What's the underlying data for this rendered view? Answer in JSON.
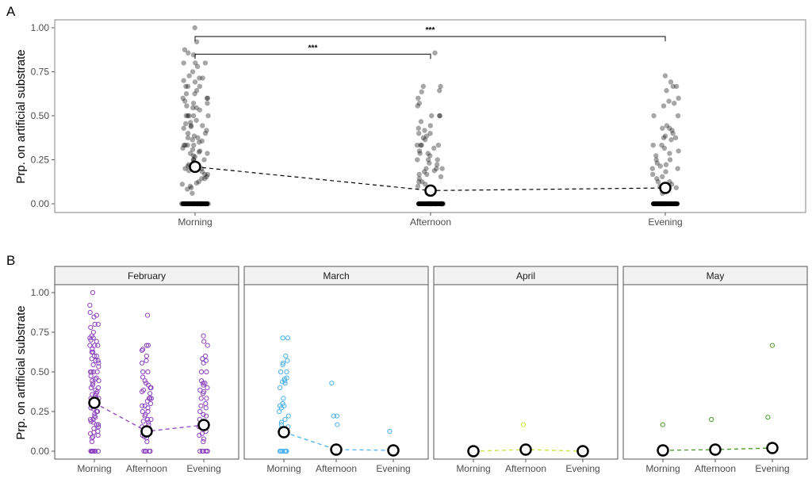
{
  "chart_data": [
    {
      "panel_label": "A",
      "type": "scatter",
      "ylabel": "Prp. on artificial substrate",
      "ylim": [
        -0.04,
        1.04
      ],
      "yticks": [
        "0.00",
        "0.25",
        "0.50",
        "0.75",
        "1.00"
      ],
      "ytick_values": [
        0,
        0.25,
        0.5,
        0.75,
        1.0
      ],
      "categories": [
        "Morning",
        "Afternoon",
        "Evening"
      ],
      "means": [
        0.21,
        0.075,
        0.09
      ],
      "point_color": "#000000",
      "point_alpha": 0.35,
      "significance": [
        {
          "from": "Morning",
          "to": "Afternoon",
          "label": "***",
          "y": 0.85
        },
        {
          "from": "Morning",
          "to": "Evening",
          "label": "***",
          "y": 0.95
        }
      ],
      "points": {
        "Morning": [
          1.0,
          0.92,
          0.875,
          0.857,
          0.846,
          0.8,
          0.8,
          0.8,
          0.78,
          0.75,
          0.727,
          0.714,
          0.714,
          0.7,
          0.692,
          0.667,
          0.667,
          0.667,
          0.643,
          0.625,
          0.625,
          0.6,
          0.6,
          0.6,
          0.583,
          0.571,
          0.571,
          0.556,
          0.545,
          0.545,
          0.533,
          0.5,
          0.5,
          0.5,
          0.5,
          0.5,
          0.474,
          0.462,
          0.455,
          0.444,
          0.444,
          0.438,
          0.429,
          0.417,
          0.4,
          0.4,
          0.385,
          0.375,
          0.375,
          0.364,
          0.357,
          0.35,
          0.333,
          0.333,
          0.333,
          0.333,
          0.316,
          0.308,
          0.3,
          0.294,
          0.286,
          0.286,
          0.273,
          0.267,
          0.25,
          0.25,
          0.25,
          0.235,
          0.222,
          0.214,
          0.2,
          0.2,
          0.188,
          0.182,
          0.167,
          0.167,
          0.154,
          0.143,
          0.143,
          0.125,
          0.118,
          0.111,
          0.1,
          0.091,
          0.083,
          0.06,
          0,
          0,
          0,
          0,
          0,
          0,
          0,
          0,
          0,
          0,
          0,
          0,
          0,
          0,
          0,
          0,
          0,
          0,
          0,
          0,
          0,
          0
        ],
        "Afternoon": [
          0.857,
          0.667,
          0.667,
          0.643,
          0.636,
          0.6,
          0.571,
          0.556,
          0.5,
          0.5,
          0.5,
          0.467,
          0.444,
          0.429,
          0.417,
          0.4,
          0.4,
          0.385,
          0.375,
          0.364,
          0.333,
          0.333,
          0.333,
          0.333,
          0.316,
          0.3,
          0.286,
          0.286,
          0.273,
          0.25,
          0.25,
          0.25,
          0.231,
          0.222,
          0.2,
          0.2,
          0.2,
          0.188,
          0.182,
          0.167,
          0.167,
          0.154,
          0.143,
          0.125,
          0.125,
          0.111,
          0.1,
          0.091,
          0.083,
          0.06,
          0,
          0,
          0,
          0,
          0,
          0,
          0,
          0,
          0,
          0,
          0,
          0,
          0,
          0
        ],
        "Evening": [
          0.727,
          0.692,
          0.667,
          0.667,
          0.643,
          0.6,
          0.583,
          0.571,
          0.556,
          0.5,
          0.5,
          0.444,
          0.429,
          0.429,
          0.417,
          0.4,
          0.385,
          0.375,
          0.375,
          0.364,
          0.333,
          0.333,
          0.316,
          0.3,
          0.286,
          0.273,
          0.25,
          0.25,
          0.231,
          0.222,
          0.214,
          0.2,
          0.2,
          0.182,
          0.167,
          0.154,
          0.143,
          0.125,
          0.125,
          0.111,
          0.1,
          0.091,
          0.077,
          0.06,
          0,
          0,
          0,
          0,
          0,
          0,
          0,
          0,
          0,
          0,
          0,
          0
        ]
      }
    },
    {
      "panel_label": "B",
      "type": "scatter",
      "ylabel": "Prp. on artificial substrate",
      "ylim": [
        -0.04,
        1.04
      ],
      "yticks": [
        "0.00",
        "0.25",
        "0.50",
        "0.75",
        "1.00"
      ],
      "ytick_values": [
        0,
        0.25,
        0.5,
        0.75,
        1.0
      ],
      "categories": [
        "Morning",
        "Afternoon",
        "Evening"
      ],
      "facets": [
        {
          "name": "February",
          "color": "#8E44C0",
          "means": [
            0.305,
            0.125,
            0.165
          ],
          "points": {
            "Morning": [
              1.0,
              0.92,
              0.875,
              0.857,
              0.846,
              0.8,
              0.8,
              0.78,
              0.75,
              0.727,
              0.714,
              0.714,
              0.7,
              0.692,
              0.667,
              0.667,
              0.667,
              0.643,
              0.625,
              0.625,
              0.6,
              0.6,
              0.583,
              0.571,
              0.571,
              0.556,
              0.545,
              0.533,
              0.5,
              0.5,
              0.5,
              0.5,
              0.474,
              0.462,
              0.455,
              0.444,
              0.444,
              0.429,
              0.417,
              0.4,
              0.4,
              0.385,
              0.375,
              0.364,
              0.357,
              0.35,
              0.333,
              0.333,
              0.333,
              0.316,
              0.308,
              0.3,
              0.294,
              0.286,
              0.273,
              0.267,
              0.25,
              0.25,
              0.235,
              0.222,
              0.214,
              0.2,
              0.2,
              0.188,
              0.182,
              0.167,
              0.167,
              0.154,
              0.143,
              0.125,
              0.118,
              0.111,
              0.1,
              0.091,
              0.083,
              0.06,
              0,
              0,
              0,
              0,
              0,
              0,
              0,
              0
            ],
            "Afternoon": [
              0.857,
              0.667,
              0.667,
              0.643,
              0.636,
              0.6,
              0.571,
              0.556,
              0.5,
              0.5,
              0.467,
              0.444,
              0.429,
              0.417,
              0.4,
              0.4,
              0.385,
              0.375,
              0.364,
              0.333,
              0.333,
              0.333,
              0.316,
              0.3,
              0.286,
              0.286,
              0.273,
              0.25,
              0.25,
              0.231,
              0.222,
              0.2,
              0.2,
              0.188,
              0.182,
              0.167,
              0.154,
              0.143,
              0.125,
              0.111,
              0.1,
              0.091,
              0.083,
              0.06,
              0,
              0,
              0,
              0,
              0,
              0,
              0
            ],
            "Evening": [
              0.727,
              0.692,
              0.667,
              0.6,
              0.583,
              0.571,
              0.556,
              0.5,
              0.5,
              0.444,
              0.429,
              0.429,
              0.417,
              0.4,
              0.385,
              0.375,
              0.364,
              0.333,
              0.333,
              0.3,
              0.286,
              0.273,
              0.25,
              0.231,
              0.222,
              0.2,
              0.182,
              0.167,
              0.154,
              0.143,
              0.125,
              0.111,
              0.1,
              0.077,
              0.06,
              0,
              0,
              0,
              0,
              0,
              0
            ]
          }
        },
        {
          "name": "March",
          "color": "#4FB3F0",
          "means": [
            0.12,
            0.01,
            0.005
          ],
          "points": {
            "Morning": [
              0.714,
              0.714,
              0.6,
              0.571,
              0.556,
              0.545,
              0.5,
              0.5,
              0.462,
              0.455,
              0.444,
              0.438,
              0.429,
              0.4,
              0.333,
              0.3,
              0.286,
              0.286,
              0.273,
              0.25,
              0.222,
              0.2,
              0.182,
              0.167,
              0.154,
              0.143,
              0,
              0,
              0,
              0,
              0,
              0,
              0,
              0
            ],
            "Afternoon": [
              0.429,
              0.222,
              0.222,
              0.167
            ],
            "Evening": [
              0.125
            ]
          }
        },
        {
          "name": "April",
          "color": "#C8E63C",
          "means": [
            0.0,
            0.01,
            0.0
          ],
          "points": {
            "Morning": [],
            "Afternoon": [
              0.167
            ],
            "Evening": []
          }
        },
        {
          "name": "May",
          "color": "#4C9A2A",
          "means": [
            0.005,
            0.01,
            0.02
          ],
          "points": {
            "Morning": [
              0.167
            ],
            "Afternoon": [
              0.2
            ],
            "Evening": [
              0.667,
              0.214
            ]
          }
        }
      ]
    }
  ]
}
